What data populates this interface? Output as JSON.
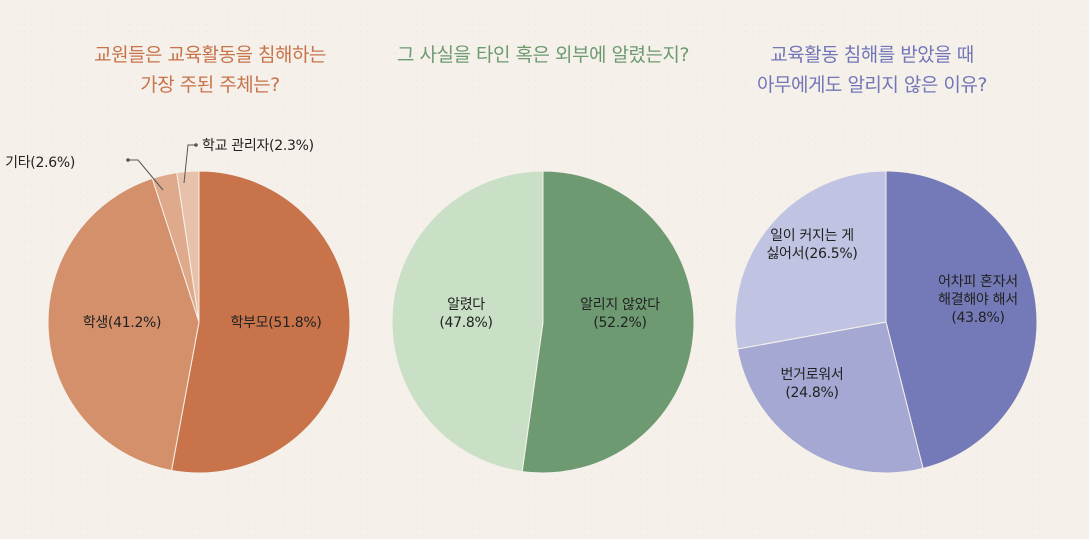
{
  "chart_data": [
    {
      "type": "pie",
      "title": [
        "교원들은 교육활동을 침해하는",
        "가장 주된 주체는?"
      ],
      "title_color": "#c8734a",
      "slices": [
        {
          "label": "학부모",
          "value": 51.8,
          "text": "학부모(51.8%)",
          "color": "#c8734a"
        },
        {
          "label": "학생",
          "value": 41.2,
          "text": "학생(41.2%)",
          "color": "#d48f6b"
        },
        {
          "label": "기타",
          "value": 2.6,
          "text": "기타(2.6%)",
          "color": "#dfa98b"
        },
        {
          "label": "학교 관리자",
          "value": 2.3,
          "text": "학교 관리자(2.3%)",
          "color": "#e8c1ab"
        }
      ]
    },
    {
      "type": "pie",
      "title": [
        "그 사실을 타인 혹은 외부에 알렸는지?"
      ],
      "title_color": "#6d9a6f",
      "slices": [
        {
          "label": "알리지 않았다",
          "value": 52.2,
          "text": [
            "알리지 않았다",
            "(52.2%)"
          ],
          "color": "#6e9a72"
        },
        {
          "label": "알렸다",
          "value": 47.8,
          "text": [
            "알렸다",
            "(47.8%)"
          ],
          "color": "#c9e0c7"
        }
      ]
    },
    {
      "type": "pie",
      "title": [
        "교육활동 침해를 받았을 때",
        "아무에게도 알리지 않은 이유?"
      ],
      "title_color": "#7276b8",
      "slices": [
        {
          "label": "어차피 혼자서 해결해야 해서",
          "value": 43.8,
          "text": [
            "어차피 혼자서",
            "해결해야 해서",
            "(43.8%)"
          ],
          "color": "#7479b8"
        },
        {
          "label": "번거로워서",
          "value": 24.8,
          "text": [
            "번거로워서",
            "(24.8%)"
          ],
          "color": "#a4a8d3"
        },
        {
          "label": "일이 커지는 게 싫어서",
          "value": 26.5,
          "text": [
            "일이 커지는 게",
            "싫어서(26.5%)"
          ],
          "color": "#c0c3e2"
        }
      ]
    }
  ]
}
